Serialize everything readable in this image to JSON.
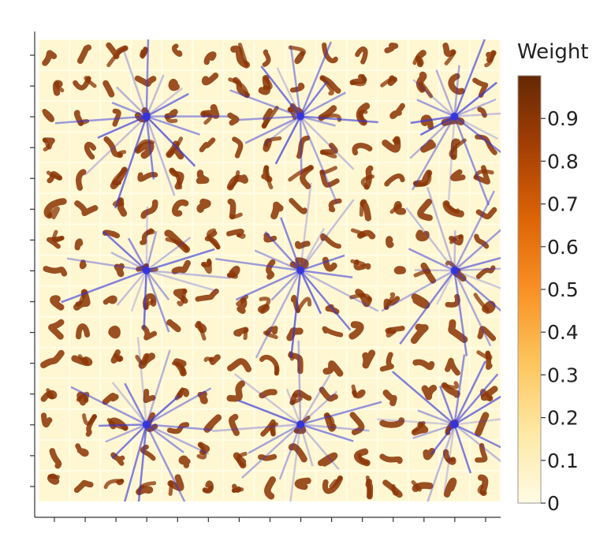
{
  "chart_data": {
    "type": "heatmap",
    "title": "",
    "xlabel": "",
    "ylabel": "",
    "grid_rows": 15,
    "grid_cols": 15,
    "colorbar": {
      "title": "Weight",
      "range": [
        0,
        1
      ],
      "ticks": [
        "0",
        "0.1",
        "0.2",
        "0.3",
        "0.4",
        "0.5",
        "0.6",
        "0.7",
        "0.8",
        "0.9"
      ],
      "tick_values": [
        0,
        0.1,
        0.2,
        0.3,
        0.4,
        0.5,
        0.6,
        0.7,
        0.8,
        0.9
      ],
      "colors": [
        "#fffbe4",
        "#fee8a4",
        "#fdc45b",
        "#f99024",
        "#dd6406",
        "#a43f04",
        "#652805"
      ]
    },
    "tiles_note_colors": {
      "background": "#fffde6",
      "stroke": "#8a3303"
    },
    "overlay": {
      "color": "#3333dd",
      "hubs": [
        {
          "row": 2,
          "col": 3
        },
        {
          "row": 2,
          "col": 8
        },
        {
          "row": 2,
          "col": 13
        },
        {
          "row": 7,
          "col": 3
        },
        {
          "row": 7,
          "col": 8
        },
        {
          "row": 7,
          "col": 13
        },
        {
          "row": 12,
          "col": 3
        },
        {
          "row": 12,
          "col": 8
        },
        {
          "row": 12,
          "col": 13
        }
      ]
    }
  }
}
